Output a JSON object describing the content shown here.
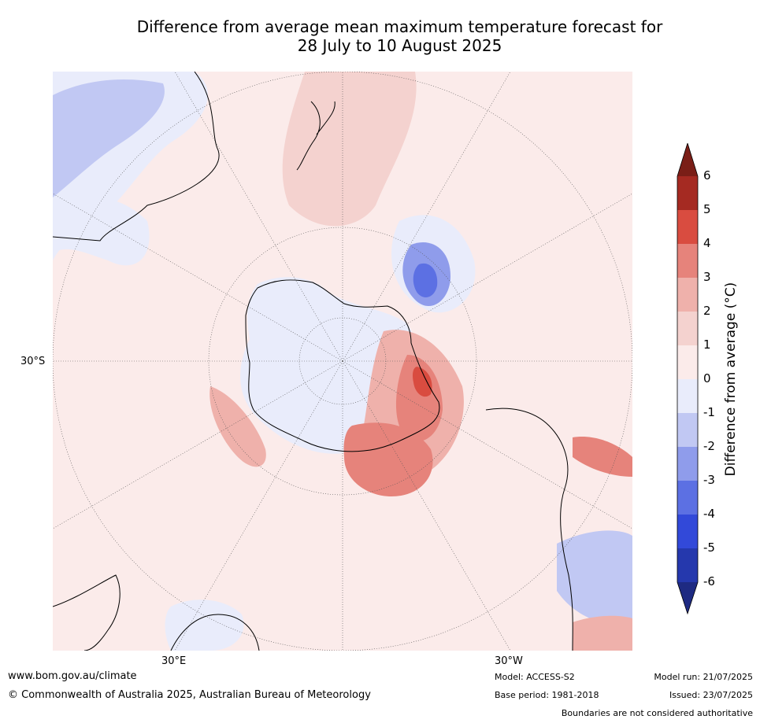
{
  "title": {
    "line1": "Difference from average mean maximum temperature forecast for",
    "line2": "28 July to 10 August 2025"
  },
  "map_labels": {
    "lat_30s": "30°S",
    "lon_30e": "30°E",
    "lon_30w": "30°W"
  },
  "colorbar": {
    "title": "Difference from average (°C)",
    "ticks": [
      "6",
      "5",
      "4",
      "3",
      "2",
      "1",
      "0",
      "-1",
      "-2",
      "-3",
      "-4",
      "-5",
      "-6"
    ],
    "colors": {
      "above_6": "#7a1e17",
      "5_6": "#a52a22",
      "4_5": "#d94c40",
      "3_4": "#e6837b",
      "2_3": "#efb1ab",
      "1_2": "#f4d2cf",
      "0_1": "#fbebea",
      "m1_0": "#e9ecfb",
      "m2_m1": "#c1c8f3",
      "m3_m2": "#8f9ceb",
      "m4_m3": "#5c70e3",
      "m5_m4": "#3249d9",
      "m6_m5": "#2538ad",
      "below_m6": "#1e2a82"
    }
  },
  "footer": {
    "website": "www.bom.gov.au/climate",
    "copyright": "© Commonwealth of Australia 2025, Australian Bureau of Meteorology",
    "model": "Model: ACCESS-S2",
    "base_period": "Base period: 1981-2018",
    "model_run": "Model run: 21/07/2025",
    "issued": "Issued: 23/07/2025",
    "disclaimer": "Boundaries are not considered authoritative"
  }
}
